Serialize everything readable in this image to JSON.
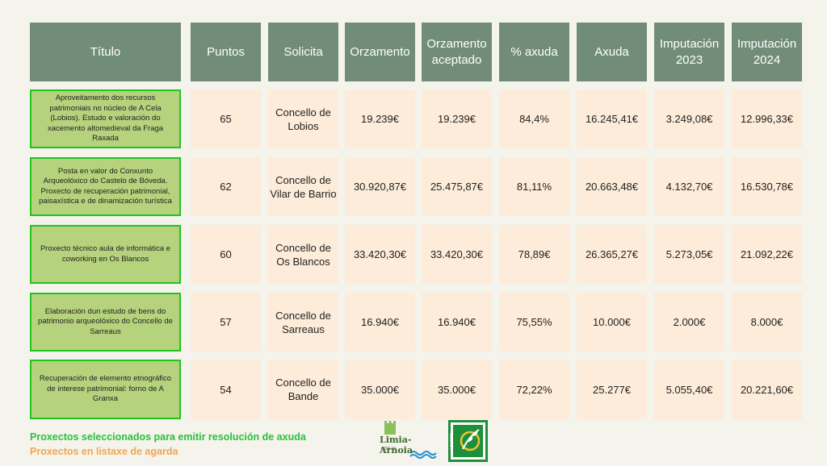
{
  "headers": {
    "titulo": "Título",
    "puntos": "Puntos",
    "solicita": "Solicita",
    "orzamento": "Orzamento",
    "orzamento_aceptado": "Orzamento aceptado",
    "pct_axuda": "% axuda",
    "axuda": "Axuda",
    "imputacion_2023": "Imputación 2023",
    "imputacion_2024": "Imputación 2024"
  },
  "rows": [
    {
      "titulo": "Aproveitamento dos recursos patrimoniais no núcleo de A Cela (Lobios). Estudo e valoración do xacemento altomedieval da Fraga Raxada",
      "puntos": "65",
      "solicita": "Concello de Lobios",
      "orzamento": "19.239€",
      "orzamento_aceptado": "19.239€",
      "pct_axuda": "84,4%",
      "axuda": "16.245,41€",
      "imputacion_2023": "3.249,08€",
      "imputacion_2024": "12.996,33€"
    },
    {
      "titulo": "Posta en valor do Conxunto Arqueolóxico do Castelo de Bóveda. Proxecto de recuperación patrimonial, paisaxística e de dinamización turística",
      "puntos": "62",
      "solicita": "Concello de Vilar de Barrio",
      "orzamento": "30.920,87€",
      "orzamento_aceptado": "25.475,87€",
      "pct_axuda": "81,11%",
      "axuda": "20.663,48€",
      "imputacion_2023": "4.132,70€",
      "imputacion_2024": "16.530,78€"
    },
    {
      "titulo": "Proxecto técnico aula de informática e coworking en Os Blancos",
      "puntos": "60",
      "solicita": "Concello de Os Blancos",
      "orzamento": "33.420,30€",
      "orzamento_aceptado": "33.420,30€",
      "pct_axuda": "78,89€",
      "axuda": "26.365,27€",
      "imputacion_2023": "5.273,05€",
      "imputacion_2024": "21.092,22€"
    },
    {
      "titulo": "Elaboración dun estudo de bens do patrimonio arqueolóxico do Concello de Sarreaus",
      "puntos": "57",
      "solicita": "Concello de Sarreaus",
      "orzamento": "16.940€",
      "orzamento_aceptado": "16.940€",
      "pct_axuda": "75,55%",
      "axuda": "10.000€",
      "imputacion_2023": "2.000€",
      "imputacion_2024": "8.000€"
    },
    {
      "titulo": "Recuperación de elemento etnográfico de interese patrimonial: forno de A Granxa",
      "puntos": "54",
      "solicita": "Concello de Bande",
      "orzamento": "35.000€",
      "orzamento_aceptado": "35.000€",
      "pct_axuda": "72,22%",
      "axuda": "25.277€",
      "imputacion_2023": "5.055,40€",
      "imputacion_2024": "20.221,60€"
    }
  ],
  "legend": {
    "selected": "Proxectos seleccionados para emitir resolución de axuda",
    "waiting": "Proxectos en listaxe de agarda"
  },
  "logos": {
    "limia": "Limia-Arnoia",
    "limia_sub": "GDR 10",
    "leader": "LEADER"
  },
  "colors": {
    "header_bg": "#718d79",
    "cell_bg": "#fdecd9",
    "title_bg": "#b5d27d",
    "title_border": "#22c41d",
    "legend_selected": "#28c23a",
    "legend_waiting": "#f3a64a"
  }
}
